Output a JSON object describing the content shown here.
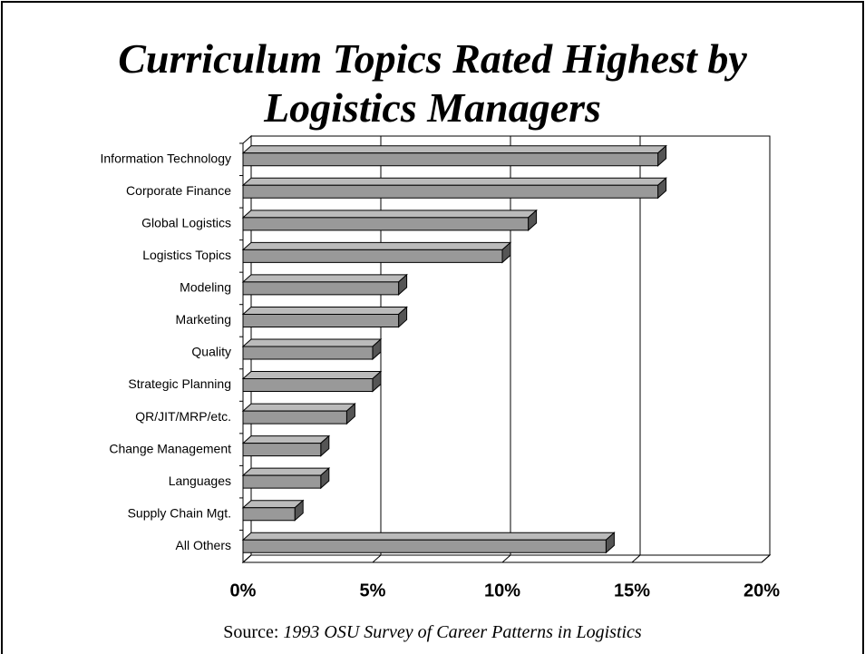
{
  "chart_data": {
    "type": "bar3d_horizontal",
    "title": "Curriculum Topics Rated Highest by Logistics Managers",
    "categories": [
      "Information Technology",
      "Corporate Finance",
      "Global Logistics",
      "Logistics Topics",
      "Modeling",
      "Marketing",
      "Quality",
      "Strategic Planning",
      "QR/JIT/MRP/etc.",
      "Change Management",
      "Languages",
      "Supply Chain Mgt.",
      "All Others"
    ],
    "values": [
      16,
      16,
      11,
      10,
      6,
      6,
      5,
      5,
      4,
      3,
      3,
      2,
      14
    ],
    "color": "#999999",
    "xlim": [
      0,
      20
    ],
    "xticks": [
      {
        "value": 0,
        "label": "0%"
      },
      {
        "value": 5,
        "label": "5%"
      },
      {
        "value": 10,
        "label": "10%"
      },
      {
        "value": 15,
        "label": "15%"
      },
      {
        "value": 20,
        "label": "20%"
      }
    ],
    "grid": true,
    "source_label": "Source:",
    "source": "1993 OSU Survey of Career Patterns in Logistics"
  }
}
